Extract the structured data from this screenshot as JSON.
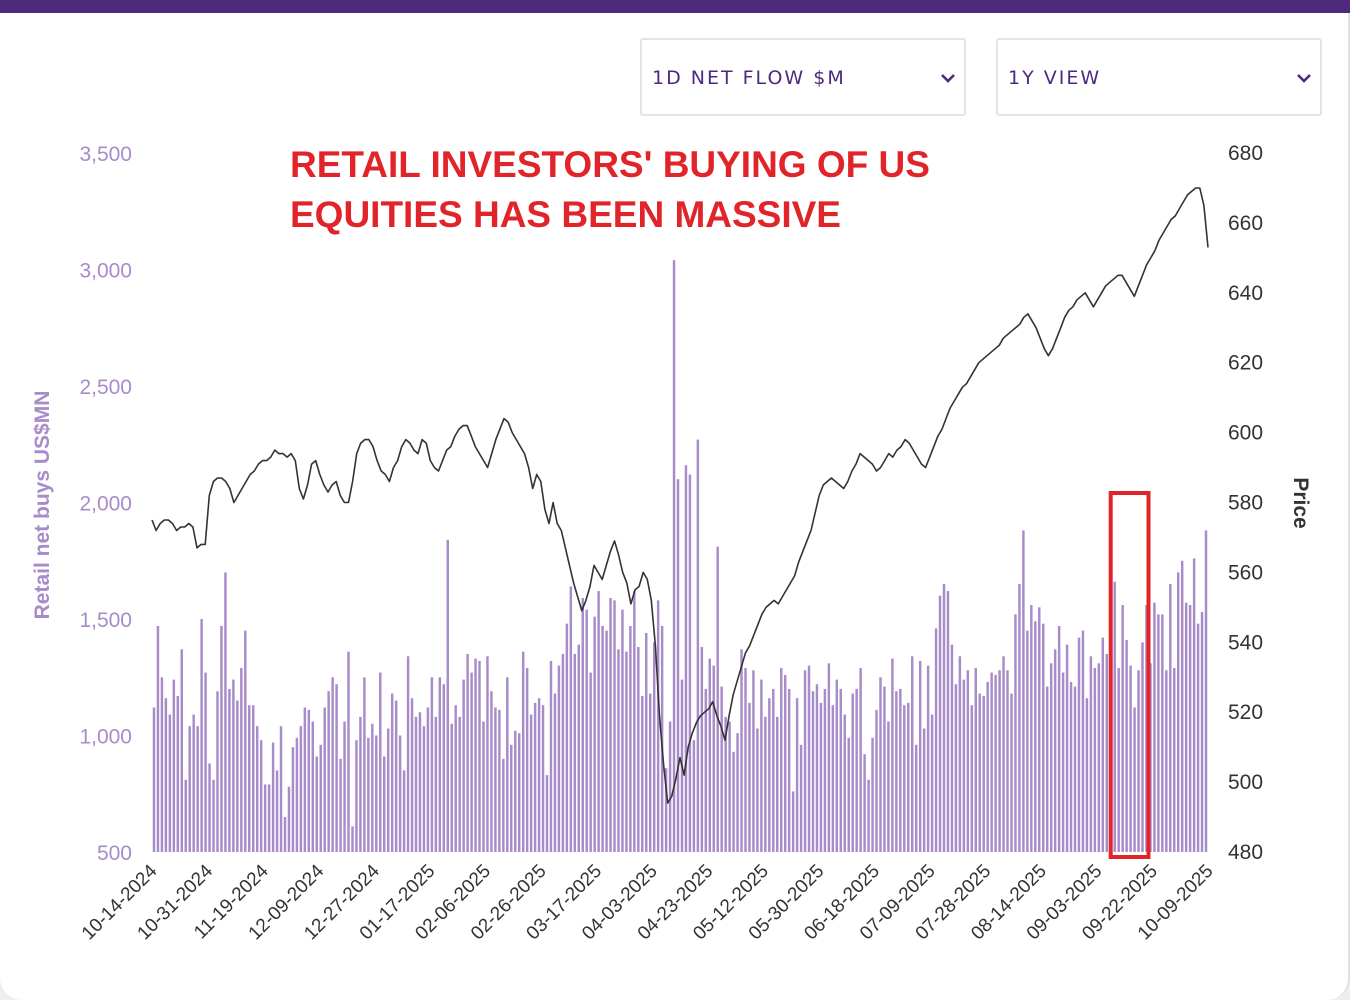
{
  "controls": {
    "metric_select": {
      "value": "1D NET FLOW $M"
    },
    "range_select": {
      "value": "1Y VIEW"
    }
  },
  "colors": {
    "accent": "#4d2a7c",
    "bars": "#a88bc9",
    "line": "#333333",
    "annotation": "#e0242a",
    "left_axis_text": "#a88bc9"
  },
  "chart_data": {
    "type": "bar+line",
    "title": "RETAIL INVESTORS' BUYING OF US EQUITIES HAS BEEN MASSIVE",
    "xlabel": "",
    "ylabel": "Retail net buys US$MN",
    "y2label": "Price",
    "ylim": [
      500,
      3500
    ],
    "y2lim": [
      480,
      680
    ],
    "yticks": [
      "3,500",
      "3,000",
      "2,500",
      "2,000",
      "1,500",
      "1,000",
      "500"
    ],
    "y2ticks": [
      "680",
      "660",
      "640",
      "620",
      "600",
      "580",
      "560",
      "540",
      "520",
      "500",
      "480"
    ],
    "x_tick_labels": [
      "10-14-2024",
      "10-31-2024",
      "11-19-2024",
      "12-09-2024",
      "12-27-2024",
      "01-17-2025",
      "02-06-2025",
      "02-26-2025",
      "03-17-2025",
      "04-03-2025",
      "04-23-2025",
      "05-12-2025",
      "05-30-2025",
      "06-18-2025",
      "07-09-2025",
      "07-28-2025",
      "08-14-2025",
      "09-03-2025",
      "09-22-2025",
      "10-09-2025"
    ],
    "highlight": {
      "from_index": 243,
      "to_index": 248
    },
    "series": [
      {
        "name": "Retail net buys US$MN",
        "kind": "bar",
        "axis": "left",
        "values": [
          1120,
          1470,
          1250,
          1160,
          1090,
          1240,
          1170,
          1370,
          810,
          1040,
          1090,
          1040,
          1500,
          1270,
          880,
          810,
          1190,
          1470,
          1700,
          1200,
          1240,
          1150,
          1290,
          1450,
          1130,
          1130,
          1040,
          980,
          790,
          790,
          970,
          850,
          1040,
          650,
          780,
          950,
          990,
          1040,
          1120,
          1110,
          1060,
          910,
          960,
          1120,
          1190,
          1250,
          1220,
          900,
          1060,
          1360,
          610,
          980,
          1080,
          1250,
          990,
          1050,
          1000,
          1270,
          910,
          1030,
          1180,
          1150,
          1000,
          850,
          1340,
          1160,
          1080,
          1100,
          1040,
          1120,
          1250,
          1080,
          1250,
          1220,
          1840,
          1050,
          1130,
          1080,
          1240,
          1350,
          1270,
          1330,
          1320,
          1060,
          1340,
          1190,
          1120,
          1110,
          900,
          1250,
          960,
          1020,
          1010,
          1360,
          1290,
          1090,
          1140,
          1160,
          1130,
          830,
          1320,
          1180,
          1300,
          1350,
          1480,
          1640,
          1350,
          1390,
          1590,
          1540,
          1270,
          1510,
          1620,
          1470,
          1450,
          1590,
          1580,
          1370,
          1540,
          1360,
          1470,
          1620,
          1380,
          1170,
          1440,
          1180,
          1400,
          1580,
          1470,
          860,
          1060,
          3040,
          2100,
          1240,
          2160,
          2120,
          980,
          2270,
          1380,
          1200,
          1330,
          1300,
          1810,
          1210,
          1080,
          1060,
          930,
          1010,
          1370,
          1290,
          1140,
          1280,
          1030,
          1240,
          1080,
          1160,
          1200,
          1080,
          1290,
          1260,
          1200,
          760,
          1160,
          960,
          1280,
          1300,
          1190,
          1220,
          1140,
          1200,
          1310,
          1130,
          1240,
          1200,
          1090,
          990,
          1180,
          1200,
          1290,
          920,
          810,
          990,
          1110,
          1250,
          1210,
          1060,
          1330,
          1190,
          1200,
          1130,
          1140,
          1340,
          960,
          1320,
          1030,
          1300,
          1090,
          1460,
          1600,
          1650,
          1620,
          1390,
          1220,
          1340,
          1240,
          1280,
          1130,
          1290,
          1180,
          1170,
          1230,
          1270,
          1260,
          1280,
          1340,
          1280,
          1180,
          1520,
          1650,
          1880,
          1450,
          1560,
          1490,
          1550,
          1480,
          1210,
          1310,
          1370,
          1470,
          1270,
          1390,
          1230,
          1210,
          1420,
          1450,
          1160,
          1340,
          1290,
          1310,
          1420,
          1350,
          1680,
          1660,
          1290,
          1560,
          1410,
          1300,
          1120,
          1280,
          1400,
          1560,
          1310,
          1570,
          1520,
          1520,
          1280,
          1650,
          1290,
          1700,
          1750,
          1570,
          1560,
          1760,
          1480,
          1530,
          1880
        ]
      },
      {
        "name": "Price",
        "kind": "line",
        "axis": "right",
        "values": [
          575,
          572,
          574,
          575,
          575,
          574,
          572,
          573,
          573,
          574,
          573,
          567,
          568,
          568,
          582,
          586,
          587,
          587,
          586,
          584,
          580,
          582,
          584,
          586,
          588,
          589,
          591,
          592,
          592,
          593,
          595,
          594,
          594,
          593,
          594,
          592,
          584,
          581,
          585,
          591,
          592,
          588,
          585,
          583,
          585,
          586,
          582,
          580,
          580,
          586,
          594,
          597,
          598,
          598,
          596,
          592,
          589,
          588,
          586,
          590,
          592,
          596,
          598,
          597,
          595,
          594,
          598,
          597,
          592,
          590,
          589,
          592,
          595,
          596,
          599,
          601,
          602,
          602,
          599,
          596,
          594,
          592,
          590,
          594,
          598,
          601,
          604,
          603,
          600,
          598,
          596,
          594,
          590,
          584,
          588,
          586,
          578,
          574,
          580,
          574,
          572,
          567,
          562,
          557,
          553,
          549,
          552,
          556,
          562,
          560,
          558,
          562,
          566,
          569,
          565,
          560,
          557,
          551,
          555,
          556,
          560,
          558,
          552,
          539,
          519,
          505,
          494,
          496,
          501,
          507,
          502,
          510,
          514,
          517,
          519,
          520,
          521,
          523,
          519,
          516,
          512,
          519,
          525,
          529,
          533,
          537,
          539,
          542,
          545,
          548,
          550,
          551,
          552,
          551,
          553,
          555,
          557,
          559,
          563,
          566,
          569,
          572,
          577,
          582,
          585,
          586,
          587,
          586,
          585,
          584,
          586,
          589,
          591,
          594,
          593,
          592,
          591,
          589,
          590,
          592,
          594,
          593,
          595,
          596,
          598,
          597,
          595,
          593,
          591,
          590,
          593,
          596,
          599,
          601,
          604,
          607,
          609,
          611,
          613,
          614,
          616,
          618,
          620,
          621,
          622,
          623,
          624,
          625,
          627,
          628,
          629,
          630,
          631,
          633,
          634,
          632,
          630,
          627,
          624,
          622,
          624,
          627,
          630,
          633,
          635,
          636,
          638,
          639,
          640,
          638,
          636,
          638,
          640,
          642,
          643,
          644,
          645,
          645,
          643,
          641,
          639,
          642,
          645,
          648,
          650,
          652,
          655,
          657,
          659,
          661,
          662,
          664,
          666,
          668,
          669,
          670,
          670,
          665,
          653
        ]
      }
    ]
  }
}
